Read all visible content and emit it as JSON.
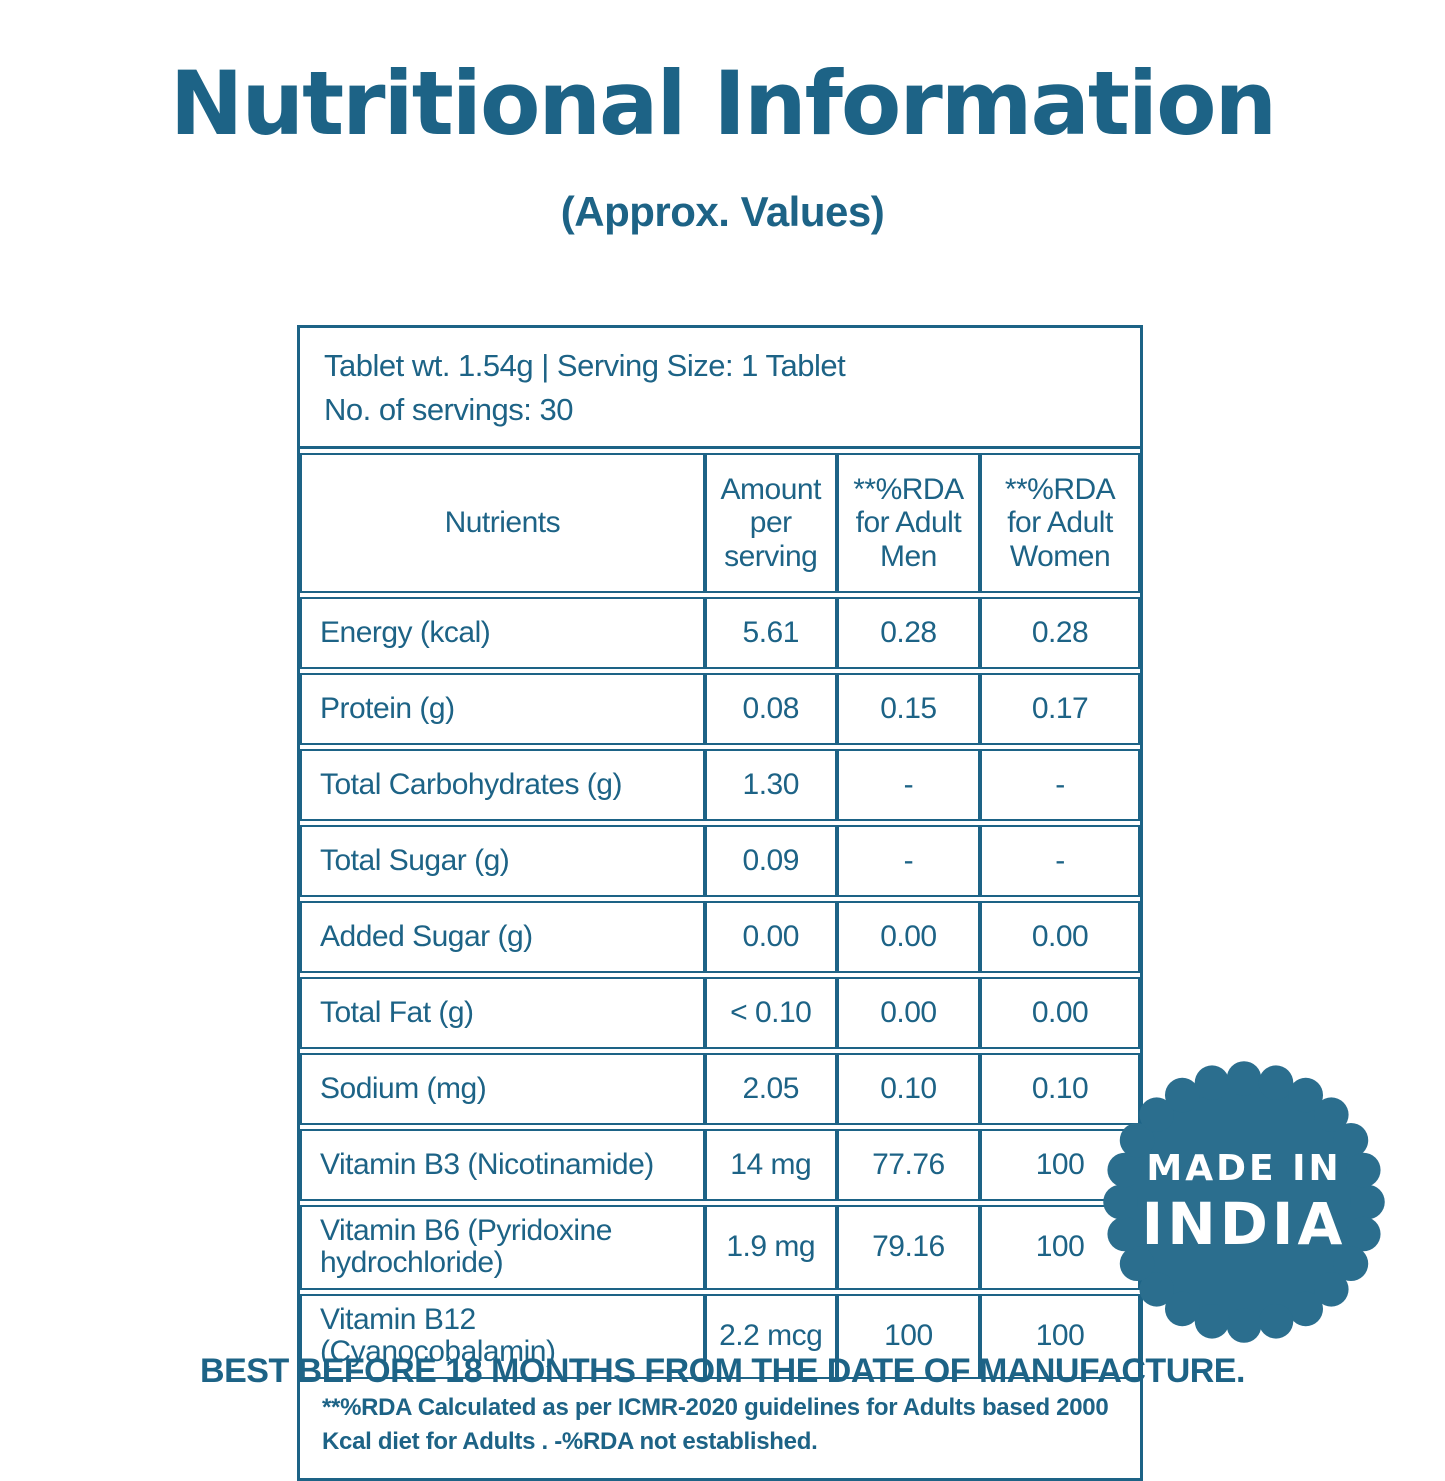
{
  "title": "Nutritional Information",
  "subtitle": "(Approx. Values)",
  "colors": {
    "primary_teal": "#1d6386",
    "badge_teal": "#2b6e8e",
    "background": "#ffffff",
    "badge_text": "#ffffff"
  },
  "table": {
    "info_line1": "Tablet wt. 1.54g | Serving Size: 1 Tablet",
    "info_line2": "No. of servings: 30",
    "columns": [
      "Nutrients",
      "Amount per serving",
      "**%RDA for Adult Men",
      "**%RDA for Adult Women"
    ],
    "rows": [
      {
        "nutrient": "Energy (kcal)",
        "amount": "5.61",
        "rda_men": "0.28",
        "rda_women": "0.28"
      },
      {
        "nutrient": "Protein (g)",
        "amount": "0.08",
        "rda_men": "0.15",
        "rda_women": "0.17"
      },
      {
        "nutrient": "Total Carbohydrates (g)",
        "amount": "1.30",
        "rda_men": "-",
        "rda_women": "-"
      },
      {
        "nutrient": "Total Sugar (g)",
        "amount": "0.09",
        "rda_men": "-",
        "rda_women": "-"
      },
      {
        "nutrient": "Added Sugar (g)",
        "amount": "0.00",
        "rda_men": "0.00",
        "rda_women": "0.00"
      },
      {
        "nutrient": "Total Fat (g)",
        "amount": "< 0.10",
        "rda_men": "0.00",
        "rda_women": "0.00"
      },
      {
        "nutrient": "Sodium (mg)",
        "amount": "2.05",
        "rda_men": "0.10",
        "rda_women": "0.10"
      },
      {
        "nutrient": "Vitamin B3 (Nicotinamide)",
        "amount": "14 mg",
        "rda_men": "77.76",
        "rda_women": "100"
      },
      {
        "nutrient": "Vitamin B6 (Pyridoxine hydrochloride)",
        "amount": "1.9 mg",
        "rda_men": "79.16",
        "rda_women": "100"
      },
      {
        "nutrient": "Vitamin B12 (Cyanocobalamin)",
        "amount": "2.2 mcg",
        "rda_men": "100",
        "rda_women": "100"
      }
    ],
    "footnote": "**%RDA Calculated as per ICMR-2020 guidelines for Adults  based 2000 Kcal diet for Adults . -%RDA not established."
  },
  "badge": {
    "icon": "scalloped-seal-icon",
    "line1": "MADE IN",
    "line2": "INDIA"
  },
  "footer": "BEST BEFORE 18 MONTHS FROM THE DATE OF MANUFACTURE."
}
